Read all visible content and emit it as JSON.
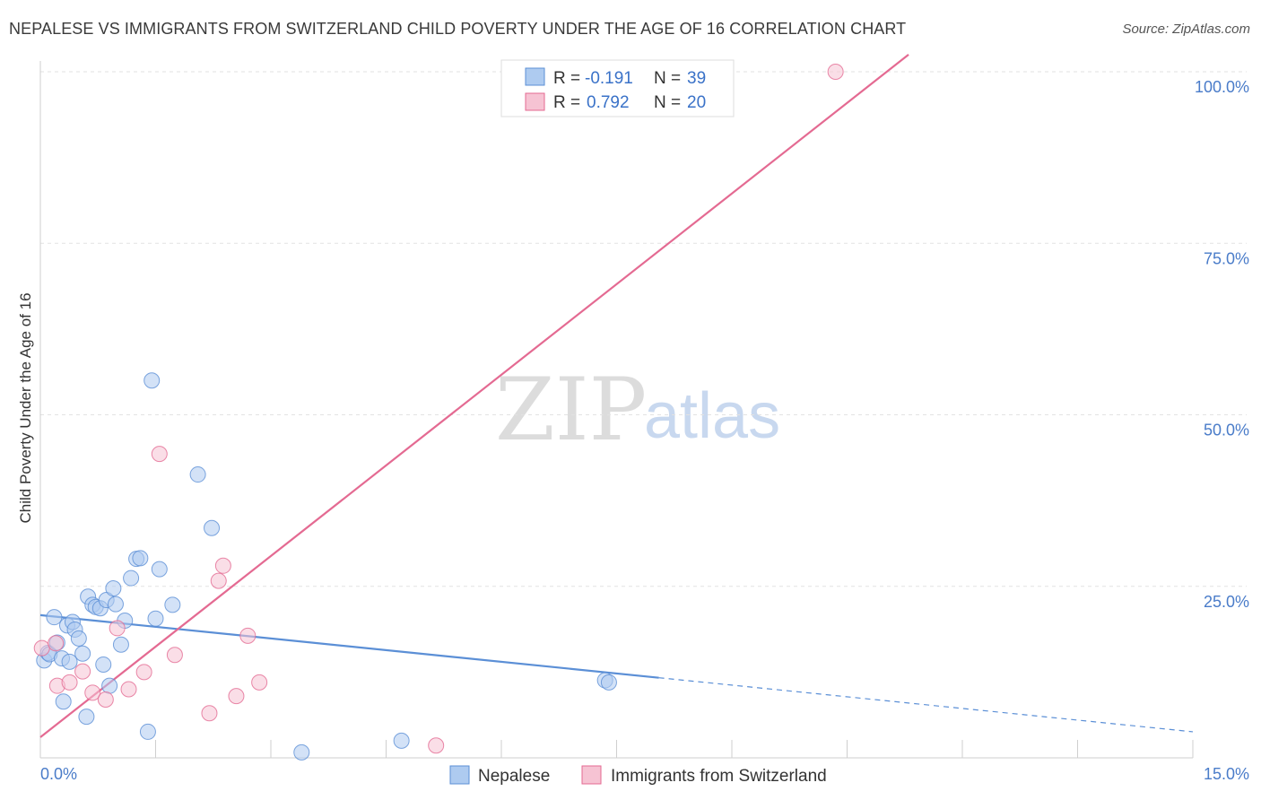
{
  "header": {
    "title": "NEPALESE VS IMMIGRANTS FROM SWITZERLAND CHILD POVERTY UNDER THE AGE OF 16 CORRELATION CHART",
    "source": "Source: ZipAtlas.com"
  },
  "watermark": {
    "zip": "ZIP",
    "atlas": "atlas"
  },
  "colors": {
    "blue": "#5b8fd6",
    "blue_fill": "#aecbf0",
    "pink": "#e46a92",
    "pink_fill": "#f6c3d3",
    "tick_text": "#4a7cc9"
  },
  "legend": {
    "rows": [
      {
        "r_label": "R =",
        "r_value": "-0.191",
        "n_label": "N =",
        "n_value": "39"
      },
      {
        "r_label": "R =",
        "r_value": "0.792",
        "n_label": "N =",
        "n_value": "20"
      }
    ]
  },
  "bottom_legend": {
    "items": [
      {
        "label": "Nepalese"
      },
      {
        "label": "Immigrants from Switzerland"
      }
    ]
  },
  "chart_data": {
    "type": "scatter",
    "title": "NEPALESE VS IMMIGRANTS FROM SWITZERLAND CHILD POVERTY UNDER THE AGE OF 16 CORRELATION CHART",
    "xlabel": "",
    "ylabel": "Child Poverty Under the Age of 16",
    "xlim": [
      0,
      15
    ],
    "ylim": [
      0,
      100
    ],
    "x_tick_labels": [
      "0.0%",
      "15.0%"
    ],
    "y_ticks": [
      25,
      50,
      75,
      100
    ],
    "y_tick_labels": [
      "25.0%",
      "50.0%",
      "75.0%",
      "100.0%"
    ],
    "grid": true,
    "series": [
      {
        "name": "Nepalese",
        "color": "#5b8fd6",
        "points": [
          [
            0.05,
            14.2
          ],
          [
            0.1,
            15.3
          ],
          [
            0.12,
            15.1
          ],
          [
            0.18,
            20.5
          ],
          [
            0.22,
            16.8
          ],
          [
            0.28,
            14.5
          ],
          [
            0.3,
            8.2
          ],
          [
            0.35,
            19.3
          ],
          [
            0.38,
            14.0
          ],
          [
            0.42,
            19.8
          ],
          [
            0.45,
            18.7
          ],
          [
            0.5,
            17.4
          ],
          [
            0.55,
            15.2
          ],
          [
            0.6,
            6.0
          ],
          [
            0.62,
            23.5
          ],
          [
            0.68,
            22.3
          ],
          [
            0.72,
            22.0
          ],
          [
            0.78,
            21.8
          ],
          [
            0.82,
            13.6
          ],
          [
            0.86,
            23.0
          ],
          [
            0.9,
            10.5
          ],
          [
            0.95,
            24.7
          ],
          [
            0.98,
            22.4
          ],
          [
            1.05,
            16.5
          ],
          [
            1.1,
            20.0
          ],
          [
            1.18,
            26.2
          ],
          [
            1.25,
            29.0
          ],
          [
            1.3,
            29.1
          ],
          [
            1.4,
            3.8
          ],
          [
            1.45,
            55.0
          ],
          [
            1.5,
            20.3
          ],
          [
            1.55,
            27.5
          ],
          [
            1.72,
            22.3
          ],
          [
            2.05,
            41.3
          ],
          [
            2.23,
            33.5
          ],
          [
            3.4,
            0.8
          ],
          [
            4.7,
            2.5
          ],
          [
            7.35,
            11.3
          ],
          [
            7.4,
            11.0
          ]
        ]
      },
      {
        "name": "Immigrants from Switzerland",
        "color": "#e46a92",
        "points": [
          [
            0.02,
            16.0
          ],
          [
            0.2,
            16.7
          ],
          [
            0.22,
            10.5
          ],
          [
            0.38,
            11.0
          ],
          [
            0.55,
            12.6
          ],
          [
            0.68,
            9.5
          ],
          [
            0.85,
            8.5
          ],
          [
            1.0,
            18.9
          ],
          [
            1.15,
            10.0
          ],
          [
            1.35,
            12.5
          ],
          [
            1.55,
            44.3
          ],
          [
            1.75,
            15.0
          ],
          [
            2.2,
            6.5
          ],
          [
            2.32,
            25.8
          ],
          [
            2.38,
            28.0
          ],
          [
            2.55,
            9.0
          ],
          [
            2.7,
            17.8
          ],
          [
            2.85,
            11.0
          ],
          [
            5.15,
            1.8
          ],
          [
            10.35,
            100.0
          ]
        ]
      }
    ],
    "trend_lines": [
      {
        "series": "Nepalese",
        "x_start": 0.0,
        "y_start": 20.8,
        "x_solid_end": 8.05,
        "x_end": 15.0,
        "y_end": 3.8,
        "style": "solid-then-dashed"
      },
      {
        "series": "Immigrants from Switzerland",
        "x_start": 0.0,
        "y_start": 3.0,
        "x_end": 11.3,
        "y_end": 102.5,
        "style": "solid"
      }
    ]
  }
}
